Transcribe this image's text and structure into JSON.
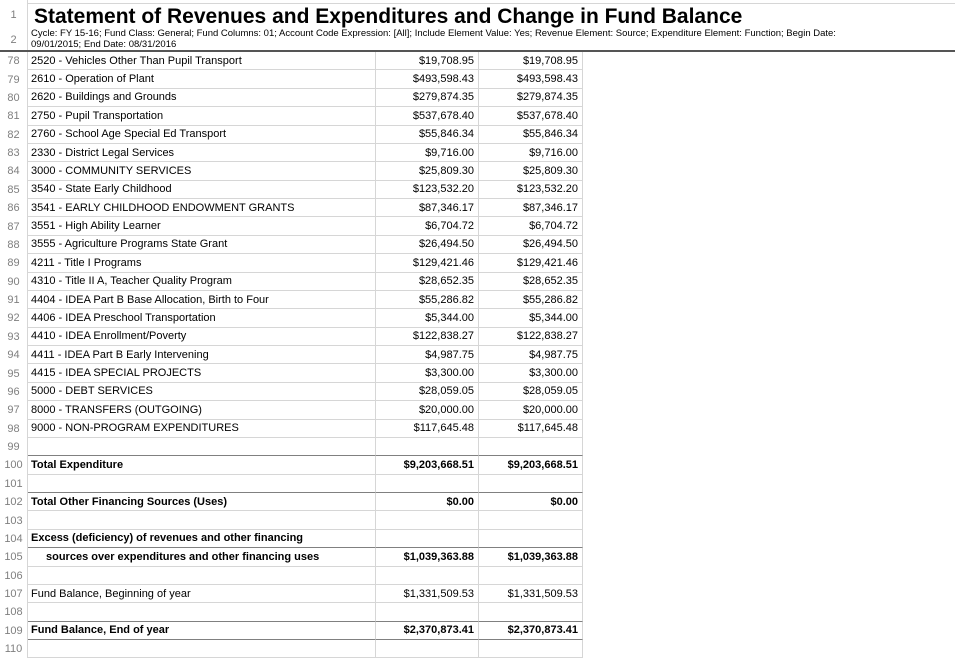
{
  "app": "spreadsheet",
  "colors": {
    "gridline": "#d6d6d6",
    "total_border": "#808080",
    "pane_divider": "#555555",
    "row_number_text": "#7f7f7f",
    "text": "#000000",
    "background": "#ffffff"
  },
  "header": {
    "row1_number": "1",
    "row2_number": "2",
    "title": "Statement of Revenues and Expenditures and Change in Fund Balance",
    "subtitle_line1": "Cycle: FY 15-16; Fund Class: General; Fund Columns: 01; Account Code Expression: [All]; Include Element Value: Yes; Revenue Element: Source; Expenditure Element: Function; Begin Date:",
    "subtitle_line2": "09/01/2015; End Date: 08/31/2016"
  },
  "rows": [
    {
      "num": "78",
      "label": "2520 - Vehicles Other Than Pupil Transport",
      "col1": "$19,708.95",
      "col2": "$19,708.95"
    },
    {
      "num": "79",
      "label": "2610 - Operation of Plant",
      "col1": "$493,598.43",
      "col2": "$493,598.43"
    },
    {
      "num": "80",
      "label": "2620 - Buildings and Grounds",
      "col1": "$279,874.35",
      "col2": "$279,874.35"
    },
    {
      "num": "81",
      "label": "2750 - Pupil Transportation",
      "col1": "$537,678.40",
      "col2": "$537,678.40"
    },
    {
      "num": "82",
      "label": "2760 - School Age Special Ed Transport",
      "col1": "$55,846.34",
      "col2": "$55,846.34"
    },
    {
      "num": "83",
      "label": "2330 - District Legal Services",
      "col1": "$9,716.00",
      "col2": "$9,716.00"
    },
    {
      "num": "84",
      "label": "3000 - COMMUNITY SERVICES",
      "col1": "$25,809.30",
      "col2": "$25,809.30"
    },
    {
      "num": "85",
      "label": "3540 - State Early Childhood",
      "col1": "$123,532.20",
      "col2": "$123,532.20"
    },
    {
      "num": "86",
      "label": "3541 - EARLY CHILDHOOD ENDOWMENT GRANTS",
      "col1": "$87,346.17",
      "col2": "$87,346.17"
    },
    {
      "num": "87",
      "label": "3551 - High Ability Learner",
      "col1": "$6,704.72",
      "col2": "$6,704.72"
    },
    {
      "num": "88",
      "label": "3555 - Agriculture Programs State Grant",
      "col1": "$26,494.50",
      "col2": "$26,494.50"
    },
    {
      "num": "89",
      "label": "4211 - Title I Programs",
      "col1": "$129,421.46",
      "col2": "$129,421.46"
    },
    {
      "num": "90",
      "label": "4310 - Title II A, Teacher Quality Program",
      "col1": "$28,652.35",
      "col2": "$28,652.35"
    },
    {
      "num": "91",
      "label": "4404 - IDEA Part B Base Allocation, Birth to Four",
      "col1": "$55,286.82",
      "col2": "$55,286.82"
    },
    {
      "num": "92",
      "label": "4406 - IDEA Preschool Transportation",
      "col1": "$5,344.00",
      "col2": "$5,344.00"
    },
    {
      "num": "93",
      "label": "4410 - IDEA Enrollment/Poverty",
      "col1": "$122,838.27",
      "col2": "$122,838.27"
    },
    {
      "num": "94",
      "label": "4411 - IDEA Part B Early Intervening",
      "col1": "$4,987.75",
      "col2": "$4,987.75"
    },
    {
      "num": "95",
      "label": "4415 - IDEA SPECIAL PROJECTS",
      "col1": "$3,300.00",
      "col2": "$3,300.00"
    },
    {
      "num": "96",
      "label": "5000 - DEBT SERVICES",
      "col1": "$28,059.05",
      "col2": "$28,059.05"
    },
    {
      "num": "97",
      "label": "8000 - TRANSFERS (OUTGOING)",
      "col1": "$20,000.00",
      "col2": "$20,000.00"
    },
    {
      "num": "98",
      "label": "9000 - NON-PROGRAM EXPENDITURES",
      "col1": "$117,645.48",
      "col2": "$117,645.48"
    },
    {
      "num": "99",
      "label": "",
      "col1": "",
      "col2": "",
      "dark_bottom": true
    },
    {
      "num": "100",
      "label": "Total Expenditure",
      "col1": "$9,203,668.51",
      "col2": "$9,203,668.51",
      "bold": true
    },
    {
      "num": "101",
      "label": "",
      "col1": "",
      "col2": "",
      "dark_bottom": true
    },
    {
      "num": "102",
      "label": "Total Other Financing Sources (Uses)",
      "col1": "$0.00",
      "col2": "$0.00",
      "bold": true
    },
    {
      "num": "103",
      "label": "",
      "col1": "",
      "col2": ""
    },
    {
      "num": "104",
      "label": "Excess (deficiency) of revenues and other financing",
      "col1": "",
      "col2": "",
      "bold": true,
      "dark_bottom": true
    },
    {
      "num": "105",
      "label": "sources over expenditures and other financing uses",
      "col1": "$1,039,363.88",
      "col2": "$1,039,363.88",
      "bold": true,
      "indent": true
    },
    {
      "num": "106",
      "label": "",
      "col1": "",
      "col2": ""
    },
    {
      "num": "107",
      "label": "Fund Balance, Beginning of year",
      "col1": "$1,331,509.53",
      "col2": "$1,331,509.53"
    },
    {
      "num": "108",
      "label": "",
      "col1": "",
      "col2": "",
      "dark_bottom": true
    },
    {
      "num": "109",
      "label": "Fund Balance, End of year",
      "col1": "$2,370,873.41",
      "col2": "$2,370,873.41",
      "bold": true,
      "dark_bottom": true
    },
    {
      "num": "110",
      "label": "",
      "col1": "",
      "col2": ""
    }
  ]
}
